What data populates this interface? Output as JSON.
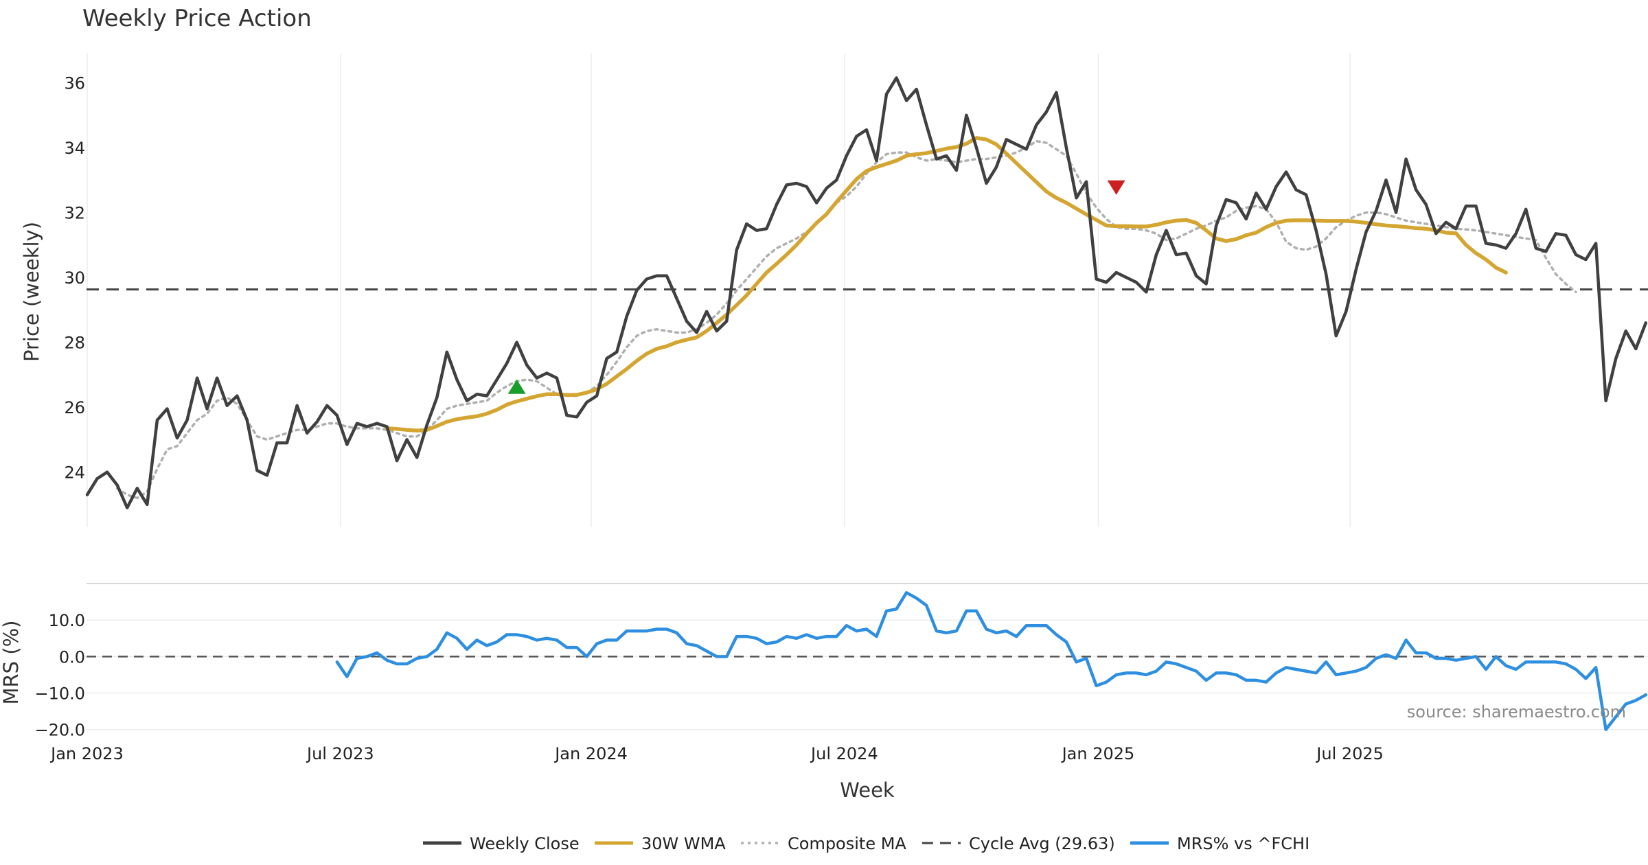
{
  "colors": {
    "close": "#404040",
    "wma": "#d4a531",
    "composite": "#b0b0b0",
    "cycle": "#444444",
    "mrs": "#2e8fe0",
    "buy": "#1a9e2a",
    "sell": "#cc1f1f",
    "zero": "#555555"
  },
  "chart_data": [
    {
      "type": "line",
      "title": "Weekly Price Action",
      "xlabel": "",
      "ylabel": "Price (weekly)",
      "ylim": [
        22.3,
        36.9
      ],
      "yticks": [
        24,
        26,
        28,
        30,
        32,
        34,
        36
      ],
      "grid": true,
      "x_ticks": [
        "Jan 2023",
        "Jul 2023",
        "Jan 2024",
        "Jul 2024",
        "Jan 2025",
        "Jul 2025"
      ],
      "cycle_avg": 29.63,
      "series": [
        {
          "name": "Weekly Close",
          "start": 0,
          "values": [
            23.3,
            23.8,
            24.0,
            23.6,
            22.9,
            23.5,
            23.0,
            25.6,
            25.95,
            25.05,
            25.6,
            26.9,
            25.95,
            26.9,
            26.05,
            26.35,
            25.6,
            24.05,
            23.9,
            24.9,
            24.9,
            26.05,
            25.2,
            25.55,
            26.05,
            25.75,
            24.85,
            25.5,
            25.4,
            25.5,
            25.4,
            24.35,
            25.0,
            24.45,
            25.45,
            26.3,
            27.7,
            26.85,
            26.2,
            26.4,
            26.35,
            26.85,
            27.35,
            28.0,
            27.3,
            26.9,
            27.05,
            26.9,
            25.75,
            25.7,
            26.15,
            26.35,
            27.5,
            27.7,
            28.8,
            29.6,
            29.95,
            30.05,
            30.05,
            29.35,
            28.65,
            28.3,
            28.95,
            28.35,
            28.65,
            30.85,
            31.65,
            31.45,
            31.5,
            32.25,
            32.85,
            32.9,
            32.8,
            32.3,
            32.75,
            33.0,
            33.75,
            34.35,
            34.55,
            33.6,
            35.65,
            36.15,
            35.45,
            35.8,
            34.7,
            33.65,
            33.75,
            33.3,
            35.0,
            34.0,
            32.9,
            33.4,
            34.25,
            34.1,
            33.95,
            34.7,
            35.1,
            35.7,
            34.0,
            32.45,
            32.95,
            29.95,
            29.85,
            30.15,
            30.0,
            29.85,
            29.55,
            30.7,
            31.45,
            30.7,
            30.75,
            30.05,
            29.8,
            31.6,
            32.4,
            32.3,
            31.8,
            32.6,
            32.1,
            32.8,
            33.25,
            32.7,
            32.55,
            31.45,
            30.1,
            28.2,
            28.95,
            30.25,
            31.4,
            32.05,
            33.0,
            32.0,
            33.65,
            32.7,
            32.25,
            31.35,
            31.7,
            31.5,
            32.2,
            32.2,
            31.05,
            31.0,
            30.9,
            31.35,
            32.1,
            30.9,
            30.8,
            31.35,
            31.3,
            30.7,
            30.55,
            31.05,
            26.2,
            27.5,
            28.35,
            27.8,
            28.6
          ]
        },
        {
          "name": "30W WMA",
          "start": 30,
          "values": [
            25.35,
            25.33,
            25.3,
            25.28,
            25.3,
            25.42,
            25.55,
            25.63,
            25.68,
            25.72,
            25.8,
            25.92,
            26.08,
            26.18,
            26.26,
            26.34,
            26.4,
            26.4,
            26.38,
            26.38,
            26.45,
            26.55,
            26.72,
            26.95,
            27.18,
            27.43,
            27.65,
            27.8,
            27.88,
            28.0,
            28.08,
            28.15,
            28.35,
            28.6,
            28.85,
            29.15,
            29.45,
            29.8,
            30.15,
            30.42,
            30.7,
            31.0,
            31.35,
            31.68,
            31.95,
            32.33,
            32.68,
            33.03,
            33.28,
            33.4,
            33.5,
            33.6,
            33.75,
            33.8,
            33.83,
            33.9,
            33.97,
            34.02,
            34.12,
            34.3,
            34.25,
            34.1,
            33.82,
            33.52,
            33.23,
            32.94,
            32.65,
            32.45,
            32.3,
            32.12,
            31.94,
            31.77,
            31.6,
            31.58,
            31.58,
            31.57,
            31.57,
            31.62,
            31.7,
            31.75,
            31.77,
            31.68,
            31.45,
            31.2,
            31.12,
            31.18,
            31.3,
            31.38,
            31.55,
            31.68,
            31.75,
            31.76,
            31.76,
            31.75,
            31.74,
            31.74,
            31.74,
            31.72,
            31.68,
            31.64,
            31.6,
            31.58,
            31.55,
            31.52,
            31.5,
            31.45,
            31.38,
            31.36,
            31.0,
            30.75,
            30.55,
            30.3,
            30.15
          ]
        },
        {
          "name": "Composite MA",
          "start": 0,
          "values": [
            null,
            null,
            null,
            23.5,
            23.3,
            23.2,
            23.4,
            24.1,
            24.7,
            24.8,
            25.2,
            25.6,
            25.8,
            26.2,
            26.3,
            26.1,
            25.6,
            25.1,
            25.0,
            25.1,
            25.2,
            25.3,
            25.3,
            25.4,
            25.5,
            25.5,
            25.4,
            25.35,
            25.35,
            25.35,
            25.3,
            25.2,
            25.1,
            25.1,
            25.3,
            25.6,
            25.95,
            26.05,
            26.1,
            26.15,
            26.2,
            26.45,
            26.65,
            26.8,
            26.85,
            26.8,
            26.6,
            26.4,
            26.35,
            26.35,
            26.45,
            26.65,
            27.0,
            27.4,
            27.85,
            28.2,
            28.35,
            28.4,
            28.35,
            28.3,
            28.3,
            28.4,
            28.6,
            28.85,
            29.2,
            29.6,
            29.95,
            30.3,
            30.65,
            30.9,
            31.05,
            31.2,
            31.4,
            31.65,
            31.95,
            32.3,
            32.5,
            32.8,
            33.2,
            33.55,
            33.8,
            33.85,
            33.85,
            33.7,
            33.6,
            33.65,
            33.6,
            33.55,
            33.6,
            33.65,
            33.65,
            33.7,
            33.75,
            33.85,
            34.0,
            34.2,
            34.15,
            33.95,
            33.75,
            33.2,
            32.6,
            32.15,
            31.8,
            31.55,
            31.5,
            31.5,
            31.45,
            31.35,
            31.15,
            31.2,
            31.35,
            31.5,
            31.6,
            31.75,
            31.85,
            32.05,
            32.15,
            32.2,
            32.1,
            31.7,
            31.1,
            30.9,
            30.85,
            30.95,
            31.2,
            31.55,
            31.75,
            31.9,
            32.0,
            32.0,
            31.95,
            31.85,
            31.75,
            31.7,
            31.65,
            31.6,
            31.55,
            31.5,
            31.48,
            31.45,
            31.4,
            31.35,
            31.3,
            31.25,
            31.2,
            31.15,
            30.6,
            30.1,
            29.8,
            29.55
          ]
        }
      ],
      "markers": [
        {
          "type": "buy",
          "week": 43,
          "value": 26.6
        },
        {
          "type": "sell",
          "week": 103,
          "value": 32.8
        }
      ]
    },
    {
      "type": "line",
      "title": "",
      "xlabel": "Week",
      "ylabel": "MRS (%)",
      "ylim": [
        -21,
        18.5
      ],
      "yticks": [
        10.0,
        0.0,
        -10.0,
        -20.0
      ],
      "ytick_labels": [
        "10.0",
        "0.0",
        "−10.0",
        "−20.0"
      ],
      "grid": true,
      "x_ticks": [
        "Jan 2023",
        "Jul 2023",
        "Jan 2024",
        "Jul 2024",
        "Jan 2025",
        "Jul 2025"
      ],
      "zero_line": 0,
      "series": [
        {
          "name": "MRS% vs ^FCHI",
          "start": 25,
          "values": [
            -1.5,
            -5.5,
            -0.5,
            0.0,
            1.0,
            -1.0,
            -2.0,
            -2.0,
            -0.5,
            0.0,
            2.0,
            6.5,
            5.0,
            2.0,
            4.5,
            3.0,
            4.0,
            6.0,
            6.0,
            5.5,
            4.5,
            5.0,
            4.5,
            2.5,
            2.5,
            0.0,
            3.5,
            4.5,
            4.5,
            7.0,
            7.0,
            7.0,
            7.5,
            7.5,
            6.5,
            3.5,
            3.0,
            1.5,
            0.0,
            0.0,
            5.5,
            5.5,
            5.0,
            3.5,
            4.0,
            5.5,
            5.0,
            6.0,
            5.0,
            5.5,
            5.5,
            8.5,
            7.0,
            7.5,
            5.5,
            12.5,
            13.0,
            17.5,
            16.0,
            14.0,
            7.0,
            6.5,
            7.0,
            12.5,
            12.5,
            7.5,
            6.5,
            7.0,
            5.5,
            8.5,
            8.5,
            8.5,
            6.0,
            4.0,
            -1.5,
            -0.5,
            -8.0,
            -7.0,
            -5.0,
            -4.5,
            -4.5,
            -5.0,
            -4.0,
            -1.5,
            -2.0,
            -3.0,
            -4.0,
            -6.5,
            -4.5,
            -4.5,
            -5.0,
            -6.5,
            -6.5,
            -7.0,
            -4.5,
            -3.0,
            -3.5,
            -4.0,
            -4.5,
            -1.5,
            -5.0,
            -4.5,
            -4.0,
            -3.0,
            -0.5,
            0.5,
            -0.5,
            4.5,
            1.0,
            1.0,
            -0.5,
            -0.5,
            -1.0,
            -0.5,
            0.0,
            -3.5,
            0.0,
            -2.5,
            -3.5,
            -1.5,
            -1.5,
            -1.5,
            -1.5,
            -2.0,
            -3.5,
            -6.0,
            -3.0,
            -20.0,
            -16.5,
            -13.0,
            -12.0,
            -10.5
          ]
        }
      ]
    }
  ],
  "legend": [
    {
      "label": "Weekly Close",
      "style": "solid",
      "color_key": "close"
    },
    {
      "label": "30W WMA",
      "style": "solid",
      "color_key": "wma"
    },
    {
      "label": "Composite MA",
      "style": "dotted",
      "color_key": "composite"
    },
    {
      "label": "Cycle Avg (29.63)",
      "style": "dashed",
      "color_key": "cycle"
    },
    {
      "label": "MRS% vs ^FCHI",
      "style": "solid",
      "color_key": "mrs"
    }
  ],
  "source_text": "source: sharemaestro.com"
}
